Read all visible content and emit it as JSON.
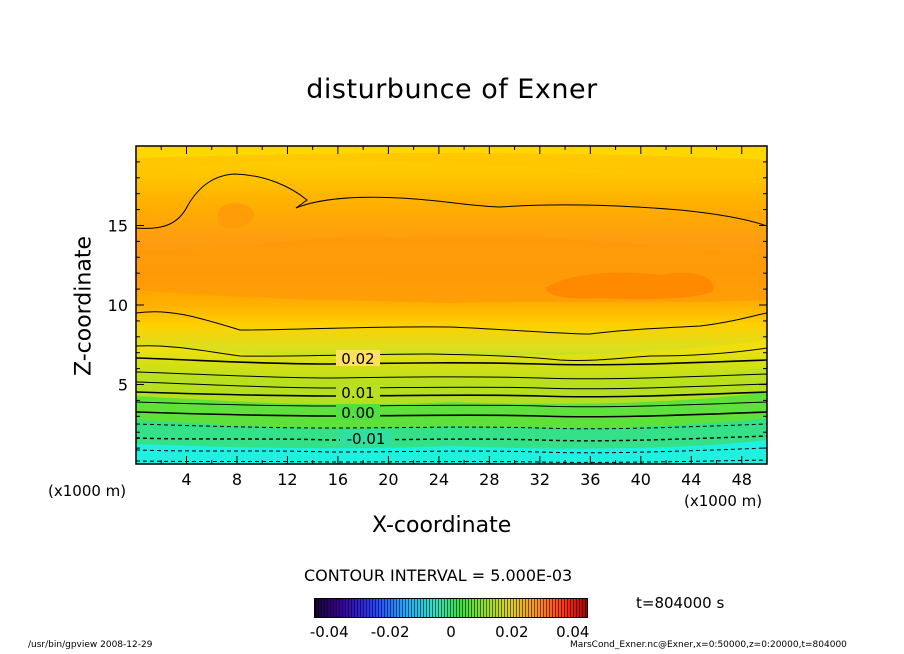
{
  "chart_data": {
    "type": "heatmap",
    "title": "disturbunce of Exner",
    "xlabel": "X-coordinate",
    "ylabel": "Z-coordinate",
    "x_scale_label": "(x1000 m)",
    "x_ticks": [
      "4",
      "8",
      "12",
      "16",
      "20",
      "24",
      "28",
      "32",
      "36",
      "40",
      "44",
      "48"
    ],
    "y_ticks": [
      "5",
      "10",
      "15"
    ],
    "xlim": [
      0,
      50
    ],
    "ylim": [
      0,
      20
    ],
    "contour_labels": [
      "0.02",
      "0.01",
      "0.00",
      "-0.01"
    ],
    "contour_interval_text": "CONTOUR INTERVAL = 5.000E-03",
    "colorbar_ticks": [
      "-0.04",
      "-0.02",
      "0",
      "0.02",
      "0.04"
    ],
    "colorbar_range": [
      -0.045,
      0.045
    ],
    "time_label": "t=804000 s",
    "colors": {
      "top": "#ffd000",
      "mid": "#ff9a10",
      "green": "#40e040",
      "bottom": "#20f0f0"
    }
  },
  "footer": {
    "left": "/usr/bin/gpview   2008-12-29",
    "right": "MarsCond_Exner.nc@Exner,x=0:50000,z=0:20000,t=804000"
  }
}
